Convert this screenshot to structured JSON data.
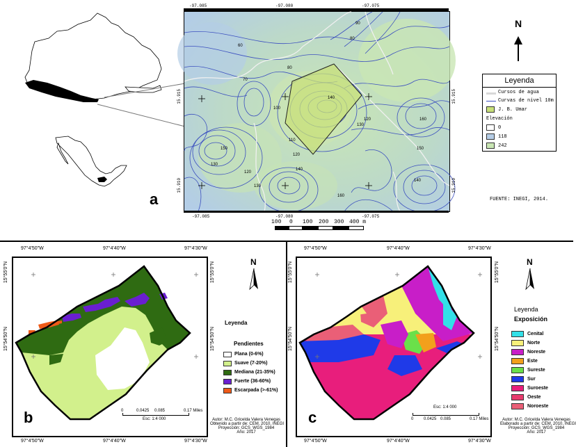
{
  "panel_a": {
    "letter": "a",
    "top_ticks": [
      "-97.085",
      "-97.080",
      "-97.075"
    ],
    "bottom_ticks": [
      "-97.085",
      "-97.080",
      "-97.075"
    ],
    "left_ticks": [
      "15.915",
      "15.910"
    ],
    "right_ticks": [
      "15.915",
      "15.910"
    ],
    "contour_labels": [
      "60",
      "70",
      "80",
      "80",
      "90",
      "100",
      "110",
      "120",
      "120",
      "120",
      "130",
      "130",
      "130",
      "140",
      "140",
      "140",
      "150",
      "150",
      "160",
      "160"
    ],
    "scale": {
      "labels": [
        "100",
        "0",
        "100",
        "200",
        "300",
        "400 m"
      ]
    },
    "north": "N",
    "source": "FUENTE: INEGI, 2014.",
    "legend": {
      "title": "Leyenda",
      "items": [
        {
          "label": "Cursos de agua",
          "color": "#d8d8d8"
        },
        {
          "label": "Curvas de nivel 10m",
          "color": "#3b4fbf"
        },
        {
          "label": "J. B. Umar",
          "color": "#c8e07a"
        }
      ],
      "elev_title": "Elevación",
      "elevation": [
        {
          "label": "0",
          "color": "#ffffff"
        },
        {
          "label": "118",
          "color": "#b6cde6"
        },
        {
          "label": "242",
          "color": "#c9e6b4"
        }
      ]
    }
  },
  "panel_b": {
    "letter": "b",
    "top_ticks": [
      "97°4'50\"W",
      "97°4'40\"W",
      "97°4'30\"W"
    ],
    "bottom_ticks": [
      "97°4'50\"W",
      "97°4'40\"W",
      "97°4'30\"W"
    ],
    "left_ticks": [
      "15°55'0\"N",
      "15°54'50\"N"
    ],
    "right_ticks": [
      "15°55'0\"N",
      "15°54'50\"N"
    ],
    "north": "N",
    "legend_title": "Leyenda",
    "legend_subtitle": "Pendientes",
    "legend": [
      {
        "label": "Plana (0-6%)",
        "color": "#ffffff"
      },
      {
        "label": "Suave (7-20%)",
        "color": "#d2f08c"
      },
      {
        "label": "Mediana (21-35%)",
        "color": "#2f6b12"
      },
      {
        "label": "Fuerte (36-60%)",
        "color": "#6a1fd0"
      },
      {
        "label": "Escarpada (>-61%)",
        "color": "#ef5a18"
      }
    ],
    "scale_labels": [
      "0",
      "0.0425",
      "0.085",
      "0.17 Miles"
    ],
    "scale_note": "Esc: 1:4 000",
    "credits": [
      "Autor: M.C. Gricelda Valera Venegas",
      "Obtenido a partir de: CEM, 2010, INEGI",
      "Proyección: GCS_WGS_1984",
      "Año: 2017"
    ]
  },
  "panel_c": {
    "letter": "c",
    "top_ticks": [
      "97°4'50\"W",
      "97°4'40\"W",
      "97°4'30\"W"
    ],
    "bottom_ticks": [
      "97°4'50\"W",
      "97°4'40\"W",
      "97°4'30\"W"
    ],
    "left_ticks": [
      "15°55'0\"N",
      "15°54'50\"N"
    ],
    "right_ticks": [
      "15°55'0\"N",
      "15°54'50\"N"
    ],
    "north": "N",
    "legend_title": "Leyenda",
    "legend_subtitle": "Exposición",
    "legend": [
      {
        "label": "Cenital",
        "color": "#33e0e8"
      },
      {
        "label": "Norte",
        "color": "#f7f07a"
      },
      {
        "label": "Noreste",
        "color": "#c81ec8"
      },
      {
        "label": "Este",
        "color": "#f2a01c"
      },
      {
        "label": "Sureste",
        "color": "#6ae04a"
      },
      {
        "label": "Sur",
        "color": "#1f3ae8"
      },
      {
        "label": "Suroeste",
        "color": "#e81e7c"
      },
      {
        "label": "Oeste",
        "color": "#e83c6e"
      },
      {
        "label": "Noroeste",
        "color": "#ea5f77"
      }
    ],
    "scale_labels": [
      "0",
      "0.0425",
      "0.085",
      "0.17 Miles"
    ],
    "scale_note": "Esc: 1:4 000",
    "credits": [
      "Autor: M.C. Gricelda Valera Venegas",
      "Elaborado a partir de: CEM, 2010, INEGI",
      "Proyección: GCS_WGS_1984",
      "Año: 2017"
    ]
  }
}
